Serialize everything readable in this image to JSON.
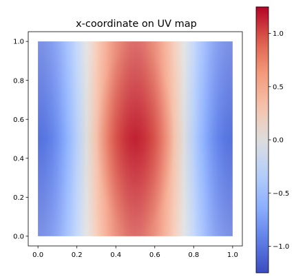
{
  "chart_data": {
    "type": "heatmap",
    "title": "x-coordinate on UV map",
    "xlabel": "",
    "ylabel": "",
    "xlim": [
      -0.05,
      1.05
    ],
    "ylim": [
      -0.05,
      1.05
    ],
    "data_extent": {
      "u": [
        0.0,
        1.0
      ],
      "v": [
        0.0,
        1.0
      ]
    },
    "x_ticks": [
      "0.0",
      "0.2",
      "0.4",
      "0.6",
      "0.8",
      "1.0"
    ],
    "y_ticks": [
      "0.0",
      "0.2",
      "0.4",
      "0.6",
      "0.8",
      "1.0"
    ],
    "colormap": "coolwarm",
    "colorbar": {
      "range": [
        -1.25,
        1.25
      ],
      "ticks": [
        "−1.0",
        "−0.5",
        "0.0",
        "0.5",
        "1.0"
      ],
      "tick_values": [
        -1.0,
        -0.5,
        0.0,
        0.5,
        1.0
      ]
    },
    "sample_values": {
      "u": [
        0.0,
        0.25,
        0.5,
        0.75,
        1.0
      ],
      "v": [
        0.0,
        0.5,
        1.0
      ],
      "z": [
        [
          -0.5,
          0.0,
          1.0,
          0.0,
          -0.5
        ],
        [
          -1.2,
          0.0,
          1.2,
          0.0,
          -1.2
        ],
        [
          -0.5,
          0.0,
          1.0,
          0.0,
          -0.5
        ]
      ]
    },
    "grid": false,
    "legend": "none"
  }
}
